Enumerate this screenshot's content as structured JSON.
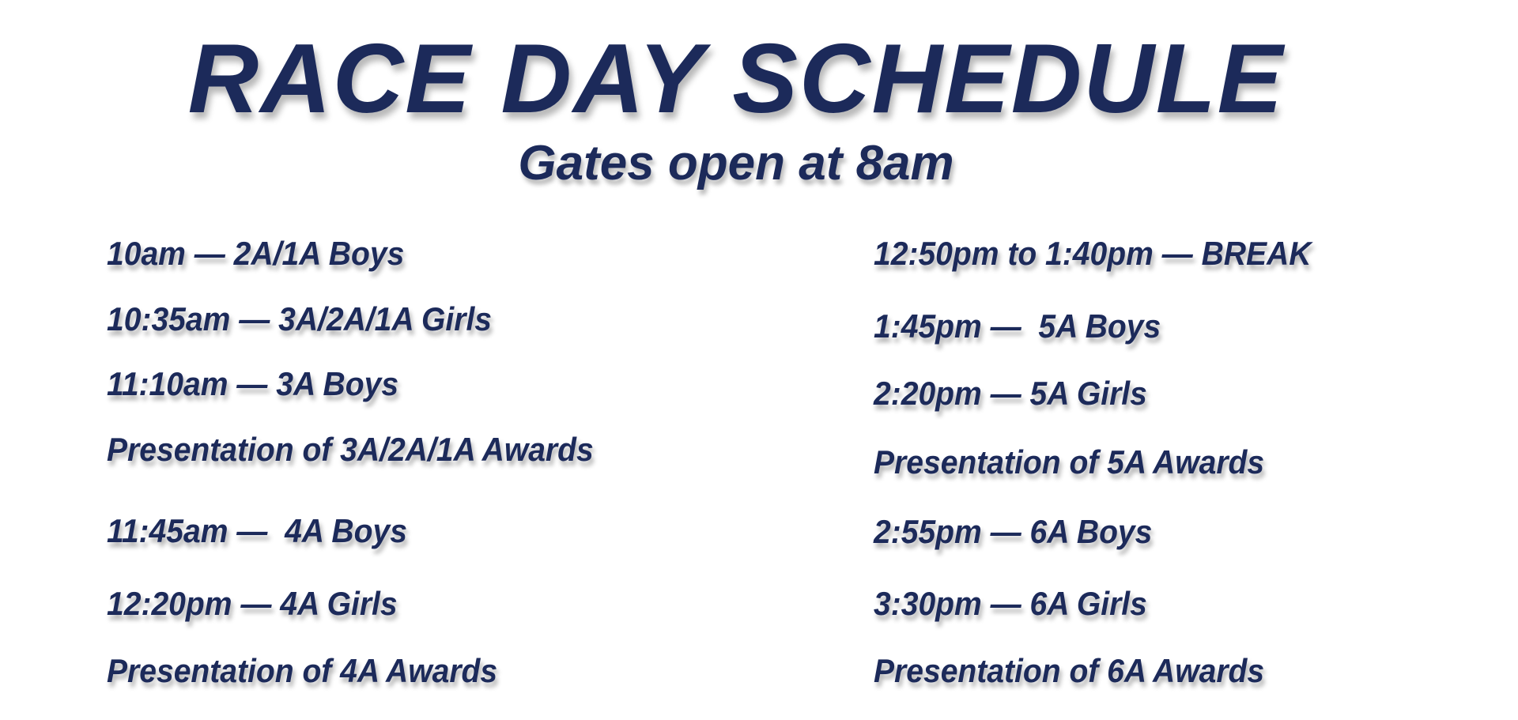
{
  "title": "RACE DAY SCHEDULE",
  "subtitle": "Gates open at 8am",
  "text_color": "#1c2a5a",
  "left_column": [
    "10am — 2A/1A Boys",
    "10:35am — 3A/2A/1A Girls",
    "11:10am — 3A Boys",
    "Presentation of 3A/2A/1A Awards",
    "11:45am —  4A Boys",
    "12:20pm — 4A Girls",
    "Presentation of 4A Awards"
  ],
  "right_column": [
    "12:50pm to 1:40pm — BREAK",
    "1:45pm —  5A Boys",
    "2:20pm — 5A Girls",
    "Presentation of 5A Awards",
    "2:55pm — 6A Boys",
    "3:30pm — 6A Girls",
    "Presentation of 6A Awards"
  ]
}
